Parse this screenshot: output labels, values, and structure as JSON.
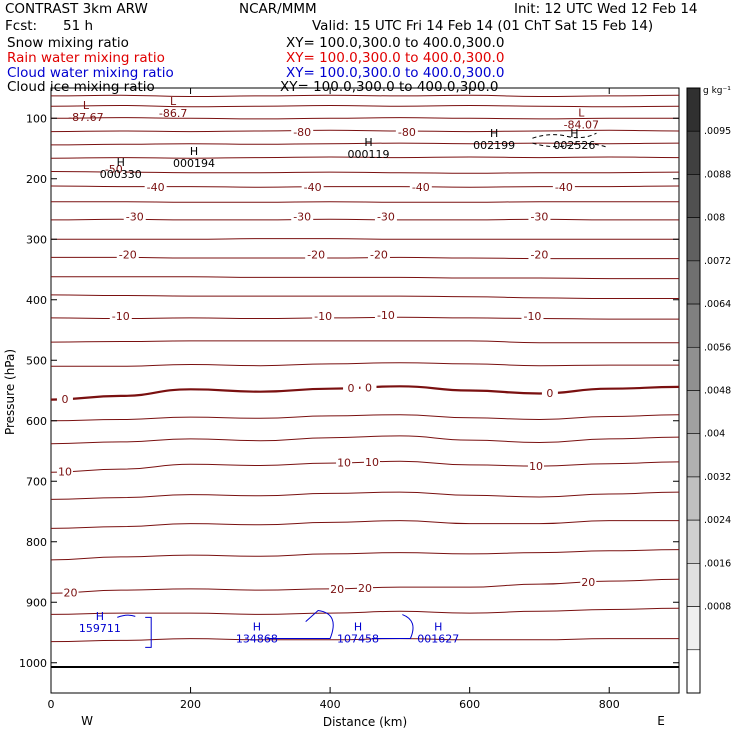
{
  "header": {
    "model": "CONTRAST  3km ARW",
    "org": "NCAR/MMM",
    "init": "Init: 12 UTC Wed 12 Feb 14",
    "fcst_label": "Fcst:",
    "fcst_value": "51 h",
    "valid": "Valid: 15 UTC Fri 14 Feb 14 (01 ChT Sat 15 Feb 14)"
  },
  "legend": [
    {
      "label": "Snow mixing ratio",
      "xy": "XY= 100.0,300.0 to 400.0,300.0",
      "color": "#000000"
    },
    {
      "label": "Rain water mixing ratio",
      "xy": "XY= 100.0,300.0 to 400.0,300.0",
      "color": "#e00000"
    },
    {
      "label": "Cloud water mixing ratio",
      "xy": "XY= 100.0,300.0 to 400.0,300.0",
      "color": "#0000d0"
    },
    {
      "label": "Cloud ice mixing ratio",
      "xy": "XY= 100.0,300.0 to 400.0,300.0",
      "color": "#000000"
    }
  ],
  "chart_data": {
    "type": "contour",
    "xlabel": "Distance (km)",
    "ylabel": "Pressure (hPa)",
    "xlim": [
      0,
      900
    ],
    "ylim": [
      1050,
      50
    ],
    "x_ticks": [
      0,
      200,
      400,
      600,
      800
    ],
    "y_ticks": [
      100,
      200,
      300,
      400,
      500,
      600,
      700,
      800,
      900,
      1000
    ],
    "direction_labels": {
      "west": "W",
      "east": "E"
    },
    "surface_pressure": 1007,
    "temperature_contours": {
      "color": "#7a1010",
      "lines": [
        {
          "p": [
            63,
            62,
            64,
            63,
            62,
            63,
            62,
            64,
            63,
            62
          ]
        },
        {
          "p": [
            80,
            79,
            81,
            80,
            79,
            80,
            79,
            80,
            81,
            80
          ]
        },
        {
          "p": [
            100,
            99,
            100,
            101,
            100,
            99,
            100,
            101,
            100,
            100
          ]
        },
        {
          "p": [
            122,
            121,
            122,
            121,
            120,
            121,
            122,
            121,
            120,
            121
          ]
        },
        {
          "p": [
            144,
            143,
            142,
            143,
            142,
            141,
            142,
            141,
            142,
            141
          ]
        },
        {
          "p": [
            166,
            165,
            166,
            165,
            164,
            165,
            164,
            165,
            164,
            165
          ]
        },
        {
          "p": [
            188,
            189,
            190,
            190,
            189,
            190,
            191,
            190,
            190,
            189
          ]
        },
        {
          "p": [
            212,
            213,
            213,
            214,
            213,
            213,
            214,
            213,
            213,
            212
          ]
        },
        {
          "p": [
            238,
            238,
            239,
            239,
            238,
            239,
            239,
            238,
            238,
            238
          ]
        },
        {
          "p": [
            268,
            267,
            268,
            268,
            267,
            268,
            268,
            267,
            268,
            268
          ]
        },
        {
          "p": [
            300,
            300,
            300,
            299,
            299,
            300,
            300,
            300,
            300,
            300
          ]
        },
        {
          "p": [
            330,
            330,
            331,
            331,
            331,
            330,
            331,
            332,
            332,
            332
          ]
        },
        {
          "p": [
            362,
            362,
            362,
            363,
            363,
            363,
            364,
            364,
            365,
            365
          ]
        },
        {
          "p": [
            392,
            393,
            394,
            394,
            394,
            394,
            395,
            397,
            398,
            398
          ]
        },
        {
          "p": [
            430,
            431,
            430,
            431,
            430,
            429,
            430,
            431,
            432,
            432
          ]
        },
        {
          "p": [
            470,
            469,
            468,
            468,
            468,
            468,
            468,
            471,
            471,
            471
          ]
        },
        {
          "p": [
            510,
            510,
            507,
            509,
            506,
            504,
            506,
            509,
            508,
            508
          ]
        },
        {
          "p": [
            565,
            559,
            548,
            552,
            547,
            543,
            550,
            555,
            547,
            544
          ],
          "labels": [
            {
              "x": 20,
              "text": "0"
            },
            {
              "x": 430,
              "text": "0"
            },
            {
              "x": 455,
              "text": "0"
            },
            {
              "x": 715,
              "text": "0"
            }
          ]
        },
        {
          "p": [
            600,
            598,
            594,
            596,
            592,
            590,
            595,
            598,
            593,
            590
          ]
        },
        {
          "p": [
            638,
            635,
            630,
            633,
            628,
            625,
            632,
            636,
            630,
            627
          ]
        },
        {
          "p": [
            685,
            680,
            672,
            674,
            670,
            667,
            673,
            675,
            671,
            668
          ],
          "labels": [
            {
              "x": 20,
              "text": "10"
            },
            {
              "x": 420,
              "text": "10"
            },
            {
              "x": 460,
              "text": "10"
            },
            {
              "x": 695,
              "text": "10"
            }
          ]
        },
        {
          "p": [
            730,
            727,
            722,
            724,
            720,
            718,
            723,
            726,
            721,
            718
          ]
        },
        {
          "p": [
            778,
            775,
            770,
            772,
            768,
            765,
            770,
            770,
            765,
            765
          ]
        },
        {
          "p": [
            830,
            825,
            822,
            824,
            820,
            818,
            820,
            818,
            815,
            813
          ]
        },
        {
          "p": [
            885,
            880,
            878,
            880,
            878,
            875,
            875,
            870,
            865,
            862
          ],
          "labels": [
            {
              "x": 28,
              "text": "20"
            },
            {
              "x": 410,
              "text": "20"
            },
            {
              "x": 450,
              "text": "20"
            },
            {
              "x": 770,
              "text": "20"
            }
          ]
        },
        {
          "p": [
            920,
            918,
            918,
            920,
            918,
            915,
            918,
            915,
            912,
            910
          ]
        },
        {
          "p": [
            965,
            963,
            960,
            962,
            962,
            960,
            962,
            962,
            960,
            960
          ]
        }
      ],
      "upper_labels": [
        {
          "x": 90,
          "p": 184,
          "text": "-50"
        },
        {
          "x": 150,
          "p": 214,
          "text": "-40"
        },
        {
          "x": 375,
          "p": 214,
          "text": "-40"
        },
        {
          "x": 530,
          "p": 214,
          "text": "-40"
        },
        {
          "x": 735,
          "p": 214,
          "text": "-40"
        },
        {
          "x": 120,
          "p": 262,
          "text": "-30"
        },
        {
          "x": 360,
          "p": 262,
          "text": "-30"
        },
        {
          "x": 480,
          "p": 262,
          "text": "-30"
        },
        {
          "x": 700,
          "p": 262,
          "text": "-30"
        },
        {
          "x": 110,
          "p": 325,
          "text": "-20"
        },
        {
          "x": 380,
          "p": 325,
          "text": "-20"
        },
        {
          "x": 470,
          "p": 325,
          "text": "-20"
        },
        {
          "x": 700,
          "p": 325,
          "text": "-20"
        },
        {
          "x": 100,
          "p": 427,
          "text": "-10"
        },
        {
          "x": 390,
          "p": 427,
          "text": "-10"
        },
        {
          "x": 480,
          "p": 425,
          "text": "-10"
        },
        {
          "x": 690,
          "p": 427,
          "text": "-10"
        },
        {
          "x": 360,
          "p": 123,
          "text": "-80"
        },
        {
          "x": 510,
          "p": 123,
          "text": "-80"
        }
      ]
    },
    "extrema": [
      {
        "type": "L",
        "x": 50,
        "p": 85,
        "value": "-87.67",
        "color": "#7a1010"
      },
      {
        "type": "L",
        "x": 175,
        "p": 78,
        "value": "-86.7",
        "color": "#7a1010"
      },
      {
        "type": "L",
        "x": 760,
        "p": 97,
        "value": "-84.07",
        "color": "#7a1010"
      },
      {
        "type": "H",
        "x": 100,
        "p": 179,
        "value": "000330",
        "color": "#000000"
      },
      {
        "type": "H",
        "x": 205,
        "p": 161,
        "value": "000194",
        "color": "#000000"
      },
      {
        "type": "H",
        "x": 455,
        "p": 146,
        "value": "000119",
        "color": "#000000"
      },
      {
        "type": "H",
        "x": 635,
        "p": 131,
        "value": "002199",
        "color": "#000000"
      },
      {
        "type": "H",
        "x": 750,
        "p": 131,
        "value": "002526",
        "color": "#000000"
      },
      {
        "type": "H",
        "x": 70,
        "p": 929,
        "value": "159711",
        "color": "#0000d0"
      },
      {
        "type": "H",
        "x": 295,
        "p": 947,
        "value": "134868",
        "color": "#0000d0"
      },
      {
        "type": "H",
        "x": 440,
        "p": 947,
        "value": "107458",
        "color": "#0000d0"
      },
      {
        "type": "H",
        "x": 555,
        "p": 947,
        "value": "001627",
        "color": "#0000d0"
      }
    ],
    "colorbar": {
      "unit": "g kg⁻¹",
      "labels": [
        ".0095",
        ".0088",
        ".008",
        ".0072",
        ".0064",
        ".0056",
        ".0048",
        ".004",
        ".0032",
        ".0024",
        ".0016",
        ".0008"
      ],
      "colors": [
        "#ffffff",
        "#efefef",
        "#e0e0e0",
        "#d0d0d0",
        "#c0c0c0",
        "#b0b0b0",
        "#a0a0a0",
        "#909090",
        "#808080",
        "#707070",
        "#606060",
        "#505050",
        "#404040",
        "#303030"
      ]
    }
  }
}
